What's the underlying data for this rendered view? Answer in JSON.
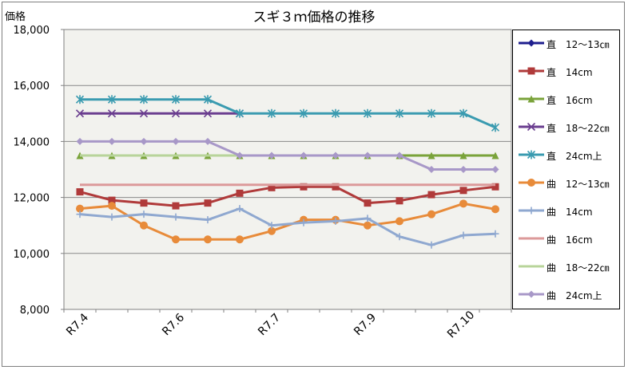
{
  "chart_data": {
    "type": "line",
    "title": "スギ３ｍ価格の推移",
    "ylabel": "価格",
    "xlabel": "",
    "ylim": [
      8000,
      18000
    ],
    "yticks": [
      8000,
      10000,
      12000,
      14000,
      16000,
      18000
    ],
    "ytick_labels": [
      "8,000",
      "10,000",
      "12,000",
      "14,000",
      "16,000",
      "18,000"
    ],
    "x_tick_labels": [
      {
        "index": 0,
        "label": "R7.4"
      },
      {
        "index": 3,
        "label": "R7.6"
      },
      {
        "index": 6,
        "label": "R7.7"
      },
      {
        "index": 9,
        "label": "R7.9"
      },
      {
        "index": 12,
        "label": "R7.10"
      }
    ],
    "num_points": 14,
    "grid": true,
    "legend_position": "right",
    "series": [
      {
        "name": "直　12～13㎝",
        "color": "#1f1f8f",
        "marker": "diamond",
        "values": [
          null,
          null,
          null,
          null,
          null,
          null,
          null,
          null,
          null,
          null,
          null,
          null,
          null,
          null
        ]
      },
      {
        "name": "直　14cm",
        "color": "#b03a3a",
        "marker": "square",
        "values": [
          12200,
          11900,
          11800,
          11700,
          11800,
          12150,
          12350,
          12380,
          12380,
          11800,
          11880,
          12100,
          12250,
          12380
        ]
      },
      {
        "name": "直　16cm",
        "color": "#7aa33a",
        "marker": "triangle",
        "values": [
          13500,
          13500,
          13500,
          13500,
          13500,
          13500,
          13500,
          13500,
          13500,
          13500,
          13500,
          13500,
          13500,
          13500
        ]
      },
      {
        "name": "直　18～22㎝",
        "color": "#6a3d8f",
        "marker": "x",
        "values": [
          15000,
          15000,
          15000,
          15000,
          15000,
          15000,
          null,
          null,
          null,
          null,
          null,
          null,
          null,
          null
        ]
      },
      {
        "name": "直　24cm上",
        "color": "#3a9bb0",
        "marker": "star",
        "values": [
          15500,
          15500,
          15500,
          15500,
          15500,
          15000,
          15000,
          15000,
          15000,
          15000,
          15000,
          15000,
          15000,
          14500
        ]
      },
      {
        "name": "曲　12～13㎝",
        "color": "#e88b3a",
        "marker": "circle",
        "values": [
          11600,
          11700,
          11000,
          10500,
          10500,
          10500,
          10800,
          11200,
          11200,
          11000,
          11150,
          11400,
          11780,
          11580
        ]
      },
      {
        "name": "曲　14cm",
        "color": "#8fa8d0",
        "marker": "plus",
        "values": [
          11400,
          11300,
          11400,
          11300,
          11200,
          11600,
          11000,
          11100,
          11150,
          11250,
          10600,
          10300,
          10650,
          10700
        ]
      },
      {
        "name": "曲　16cm",
        "color": "#dc9a9a",
        "marker": "none",
        "values": [
          12450,
          12450,
          12450,
          12450,
          12450,
          12450,
          12450,
          12450,
          12450,
          12450,
          12450,
          12450,
          12450,
          12450
        ]
      },
      {
        "name": "曲　18～22㎝",
        "color": "#b8d49a",
        "marker": "none",
        "values": [
          13500,
          13500,
          13500,
          13500,
          13500,
          13500,
          13500,
          13500,
          13500,
          13500,
          null,
          null,
          null,
          null
        ]
      },
      {
        "name": "曲　24cm上",
        "color": "#a898c8",
        "marker": "diamond",
        "values": [
          14000,
          14000,
          14000,
          14000,
          14000,
          13500,
          13500,
          13500,
          13500,
          13500,
          13500,
          13000,
          13000,
          13000
        ]
      }
    ]
  }
}
